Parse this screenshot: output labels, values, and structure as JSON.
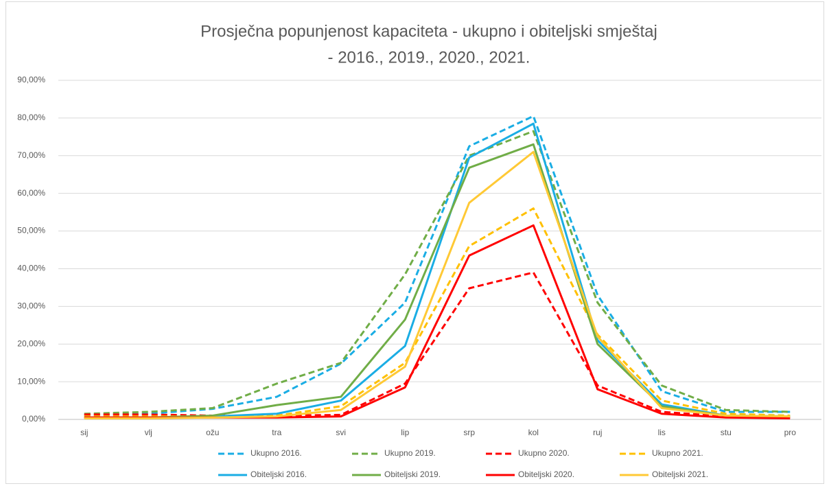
{
  "chart_data": {
    "type": "line",
    "title": [
      "Prosječna popunjenost kapaciteta - ukupno i obiteljski smještaj",
      "- 2016., 2019., 2020., 2021."
    ],
    "categories": [
      "sij",
      "vlj",
      "ožu",
      "tra",
      "svi",
      "lip",
      "srp",
      "kol",
      "ruj",
      "lis",
      "stu",
      "pro"
    ],
    "ylim": [
      0,
      90
    ],
    "yticks": [
      {
        "value": 0,
        "label": "0,00%"
      },
      {
        "value": 10,
        "label": "10,00%"
      },
      {
        "value": 20,
        "label": "20,00%"
      },
      {
        "value": 30,
        "label": "30,00%"
      },
      {
        "value": 40,
        "label": "40,00%"
      },
      {
        "value": 50,
        "label": "50,00%"
      },
      {
        "value": 60,
        "label": "60,00%"
      },
      {
        "value": 70,
        "label": "70,00%"
      },
      {
        "value": 80,
        "label": "80,00%"
      },
      {
        "value": 90,
        "label": "90,00%"
      }
    ],
    "grid": true,
    "legend": "bottom",
    "series": [
      {
        "name": "Ukupno 2016.",
        "color": "#1aade4",
        "style": "dashed",
        "values": [
          1.2,
          1.5,
          2.8,
          6,
          14.8,
          31,
          72.5,
          80.5,
          33,
          7.5,
          2,
          2
        ]
      },
      {
        "name": "Ukupno 2019.",
        "color": "#70ad47",
        "style": "dashed",
        "values": [
          1.5,
          2,
          3,
          9.5,
          15,
          38.5,
          70,
          76.5,
          31,
          9,
          2.5,
          2
        ]
      },
      {
        "name": "Ukupno 2020.",
        "color": "#ff0000",
        "style": "dashed",
        "values": [
          1.3,
          1.3,
          1,
          1,
          1.2,
          9.5,
          34.8,
          39,
          9,
          2,
          0.8,
          0.5
        ]
      },
      {
        "name": "Ukupno 2021.",
        "color": "#ffc000",
        "style": "dashed",
        "values": [
          0.8,
          0.8,
          0.8,
          1,
          3.5,
          15,
          46,
          56,
          22.5,
          5,
          1.5,
          1
        ]
      },
      {
        "name": "Obiteljski 2016.",
        "color": "#1aade4",
        "style": "solid",
        "values": [
          0.5,
          0.5,
          0.8,
          1.5,
          5,
          19.5,
          69.5,
          78.5,
          21,
          4,
          1,
          0.8
        ]
      },
      {
        "name": "Obiteljski 2019.",
        "color": "#70ad47",
        "style": "solid",
        "values": [
          0.5,
          0.5,
          1,
          3.8,
          6,
          26.5,
          66.8,
          73,
          20,
          3.5,
          1,
          0.8
        ]
      },
      {
        "name": "Obiteljski 2020.",
        "color": "#ff0000",
        "style": "solid",
        "values": [
          0.5,
          0.5,
          0.5,
          0.5,
          0.8,
          8.5,
          43.5,
          51.5,
          8,
          1.5,
          0.5,
          0.3
        ]
      },
      {
        "name": "Obiteljski 2021.",
        "color": "#ffc935",
        "style": "solid",
        "values": [
          0.3,
          0.3,
          0.5,
          0.8,
          2.5,
          14,
          57.5,
          71,
          22,
          3,
          1,
          0.8
        ]
      }
    ]
  }
}
